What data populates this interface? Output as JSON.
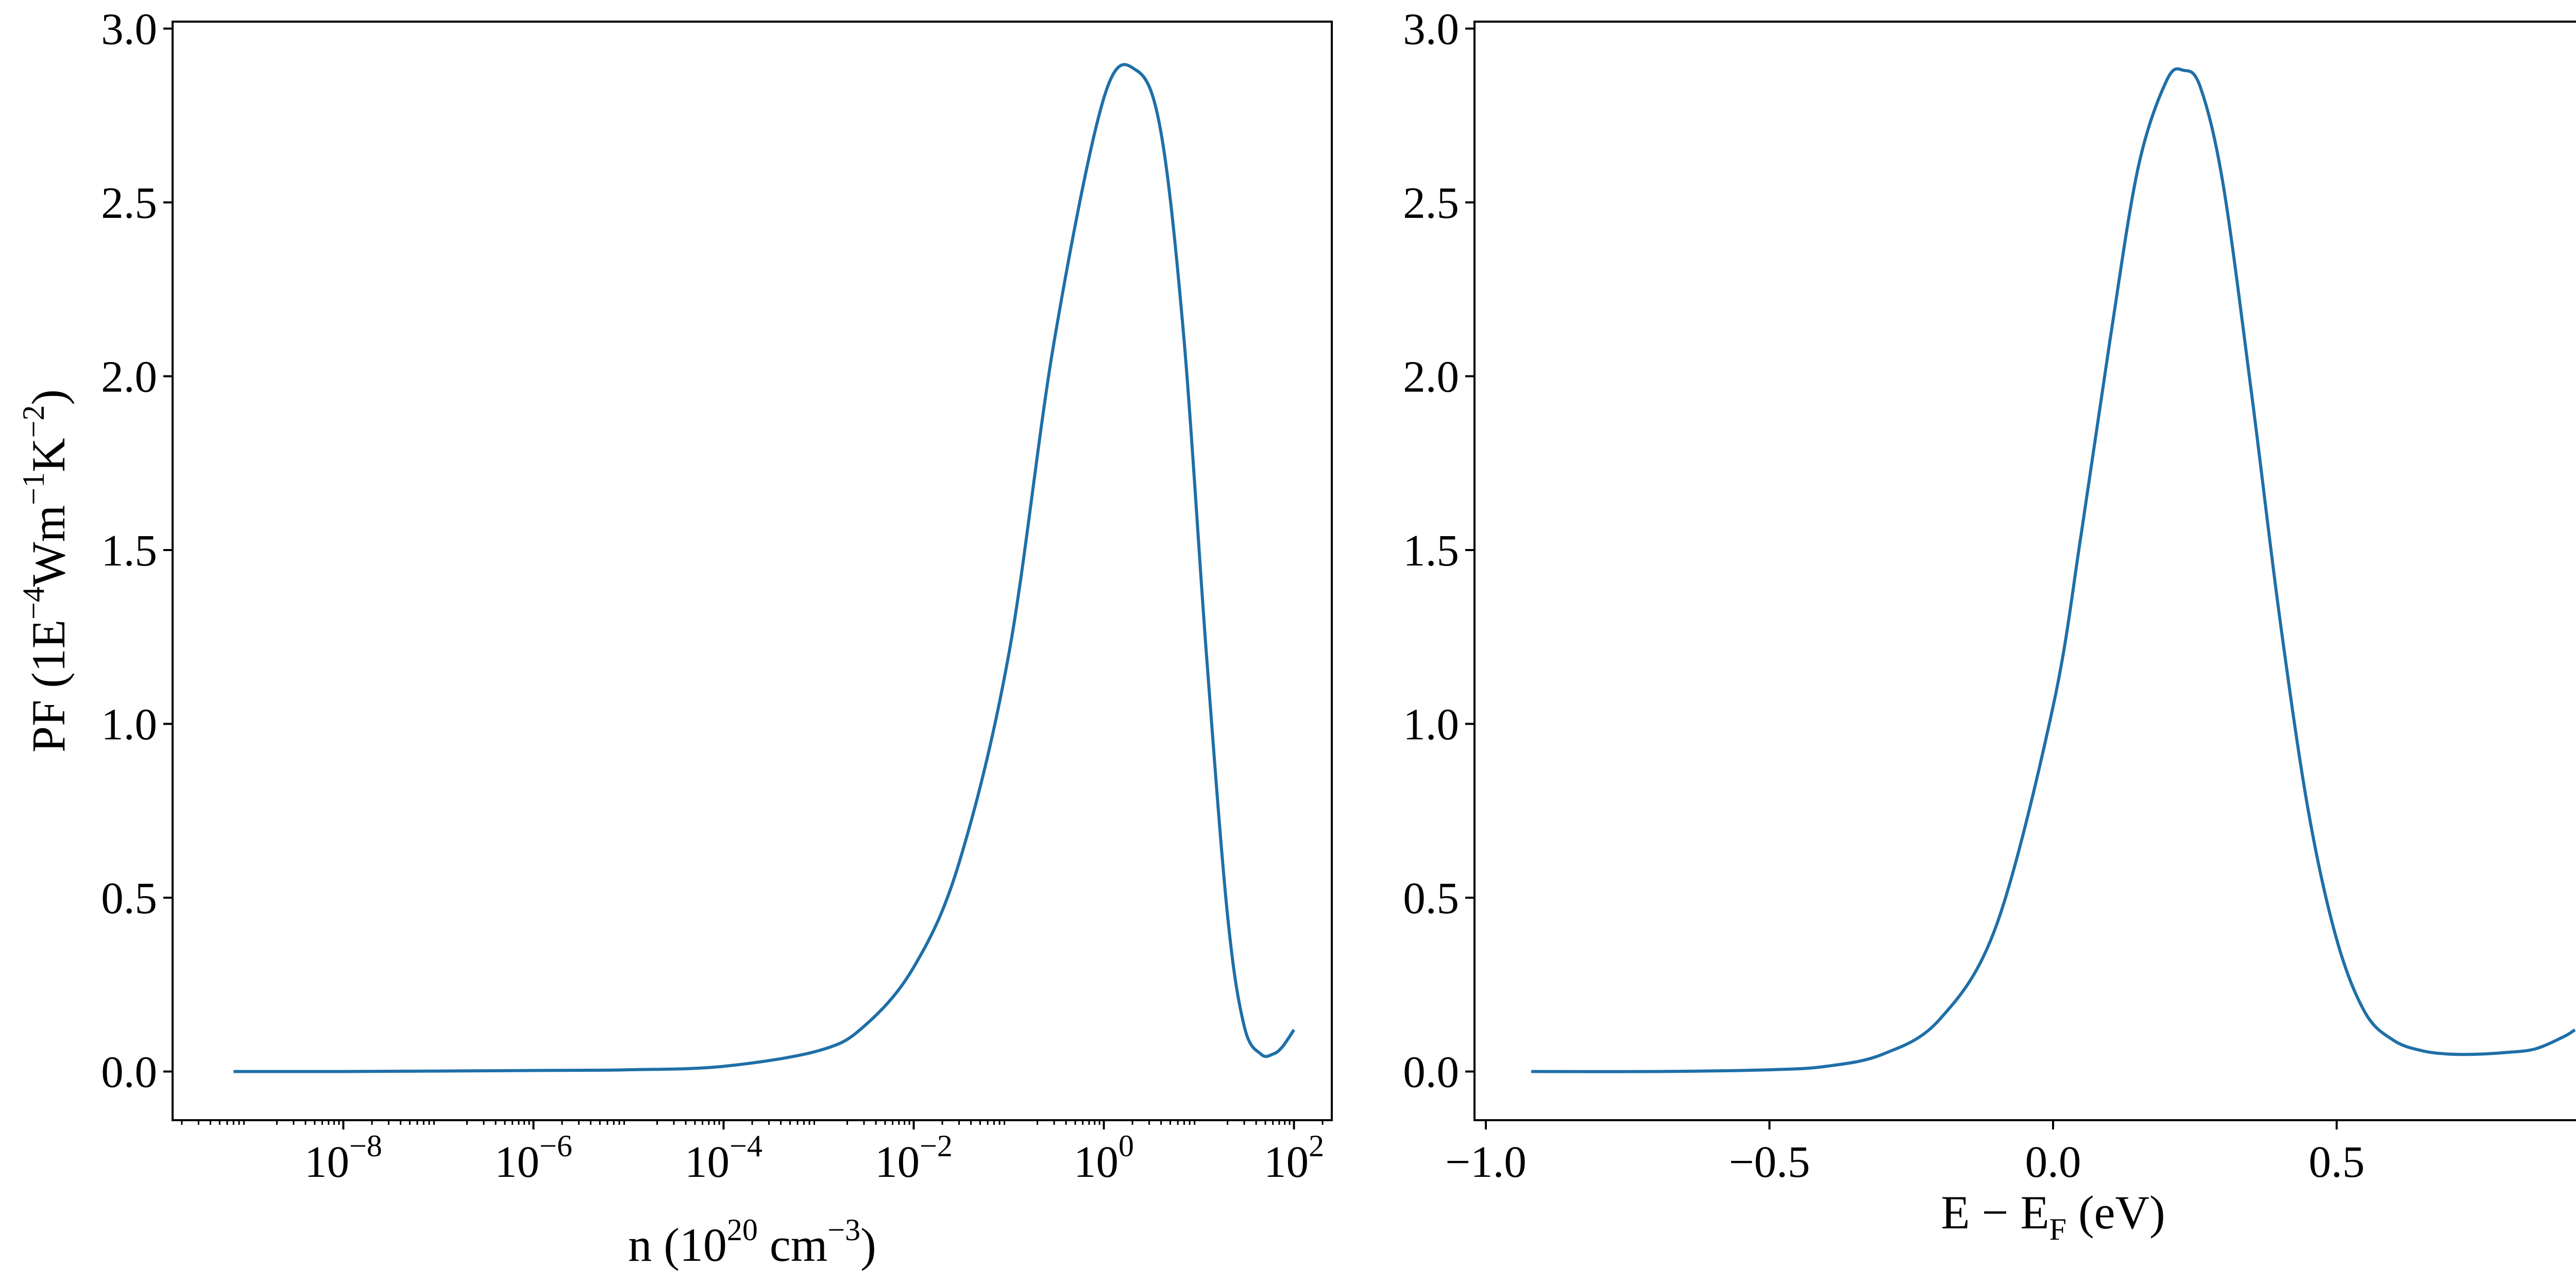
{
  "chart_data": [
    {
      "type": "line",
      "xscale": "log",
      "xlim": [
        1.6e-10,
        250
      ],
      "ylim": [
        -0.14,
        3.02
      ],
      "xticks": [
        1e-08,
        1e-06,
        0.0001,
        0.01,
        1,
        100
      ],
      "xtick_labels": [
        {
          "base": "10",
          "exp": "−8"
        },
        {
          "base": "10",
          "exp": "−6"
        },
        {
          "base": "10",
          "exp": "−4"
        },
        {
          "base": "10",
          "exp": "−2"
        },
        {
          "base": "10",
          "exp": "0"
        },
        {
          "base": "10",
          "exp": "2"
        }
      ],
      "yticks": [
        0.0,
        0.5,
        1.0,
        1.5,
        2.0,
        2.5,
        3.0
      ],
      "ytick_labels": [
        "0.0",
        "0.5",
        "1.0",
        "1.5",
        "2.0",
        "2.5",
        "3.0"
      ],
      "xlabel": {
        "pre": "n (10",
        "sup1": "20",
        "mid": " cm",
        "sup2": "−3",
        "post": ")"
      },
      "ylabel": {
        "pre": "PF (1E",
        "sup1": "−4",
        "mid1": "Wm",
        "sup2": "−1",
        "mid2": "K",
        "sup3": "−2",
        "post": ")"
      },
      "series": [
        {
          "color": "#1f6fa8",
          "x": [
            7e-10,
            1e-08,
            1e-06,
            1e-05,
            0.0001,
            0.001,
            0.003,
            0.01,
            0.03,
            0.1,
            0.3,
            1,
            2.2,
            4,
            7,
            12,
            20,
            30,
            45,
            60,
            75,
            100
          ],
          "y": [
            0.0,
            0.0,
            0.003,
            0.005,
            0.015,
            0.06,
            0.13,
            0.3,
            0.6,
            1.2,
            2.1,
            2.8,
            2.88,
            2.7,
            2.1,
            1.2,
            0.45,
            0.13,
            0.05,
            0.05,
            0.07,
            0.12
          ]
        }
      ]
    },
    {
      "type": "line",
      "xlim": [
        -1.02,
        1.02
      ],
      "ylim": [
        -0.14,
        3.02
      ],
      "xticks": [
        -1.0,
        -0.5,
        0.0,
        0.5,
        1.0
      ],
      "xtick_labels": [
        "−1.0",
        "−0.5",
        "0.0",
        "0.5",
        "1.0"
      ],
      "yticks": [
        0.0,
        0.5,
        1.0,
        1.5,
        2.0,
        2.5,
        3.0
      ],
      "ytick_labels": [
        "0.0",
        "0.5",
        "1.0",
        "1.5",
        "2.0",
        "2.5",
        "3.0"
      ],
      "xlabel": {
        "pre": "E − E",
        "sub": "F",
        "post": " (eV)"
      },
      "series": [
        {
          "color": "#1f6fa8",
          "x": [
            -0.92,
            -0.7,
            -0.5,
            -0.4,
            -0.3,
            -0.2,
            -0.1,
            0.0,
            0.05,
            0.1,
            0.15,
            0.2,
            0.23,
            0.26,
            0.3,
            0.35,
            0.4,
            0.45,
            0.5,
            0.55,
            0.6,
            0.65,
            0.7,
            0.75,
            0.8,
            0.85,
            0.9,
            0.92
          ],
          "y": [
            0.0,
            0.0,
            0.005,
            0.015,
            0.05,
            0.15,
            0.42,
            1.05,
            1.55,
            2.1,
            2.6,
            2.85,
            2.88,
            2.83,
            2.55,
            1.95,
            1.3,
            0.75,
            0.38,
            0.17,
            0.09,
            0.06,
            0.05,
            0.05,
            0.055,
            0.065,
            0.1,
            0.12
          ]
        }
      ]
    }
  ]
}
